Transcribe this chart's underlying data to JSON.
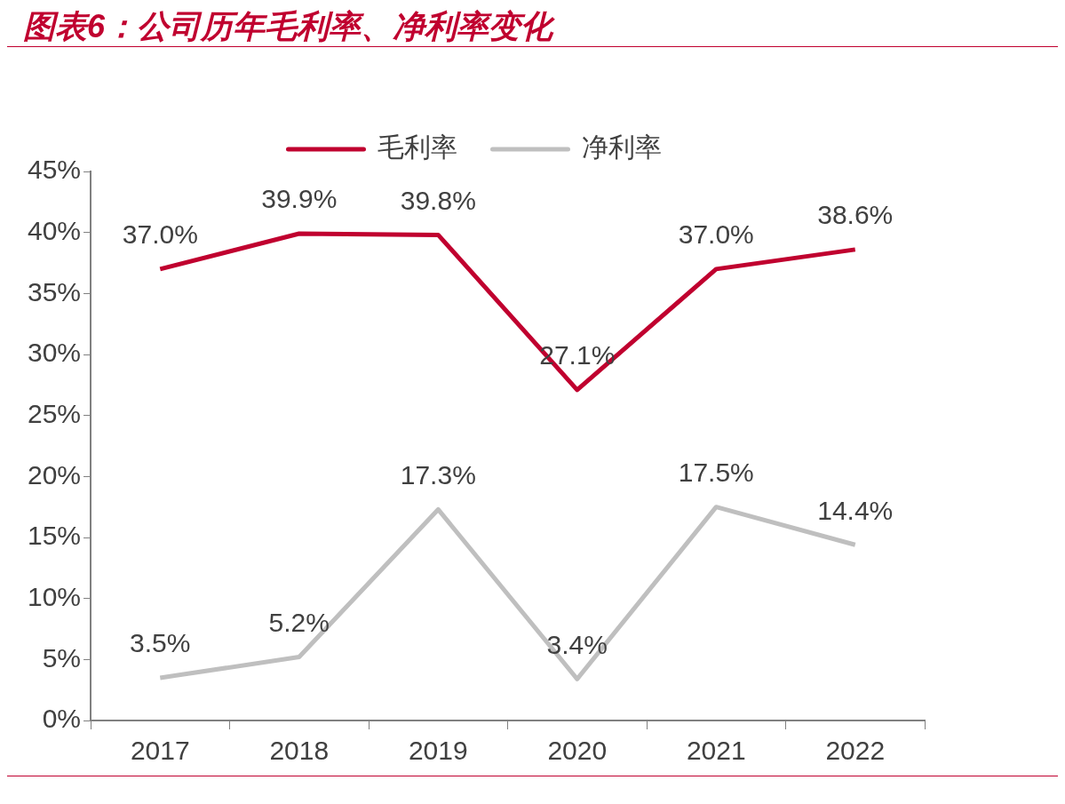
{
  "chart_data": {
    "type": "line",
    "title": "图表6：公司历年毛利率、净利率变化",
    "categories": [
      "2017",
      "2018",
      "2019",
      "2020",
      "2021",
      "2022"
    ],
    "series": [
      {
        "name": "毛利率",
        "color": "#c0002f",
        "values": [
          37.0,
          39.9,
          39.8,
          27.1,
          37.0,
          38.6
        ],
        "value_labels": [
          "37.0%",
          "39.9%",
          "39.8%",
          "27.1%",
          "37.0%",
          "38.6%"
        ]
      },
      {
        "name": "净利率",
        "color": "#bfbfbf",
        "values": [
          3.5,
          5.2,
          17.3,
          3.4,
          17.5,
          14.4
        ],
        "value_labels": [
          "3.5%",
          "5.2%",
          "17.3%",
          "3.4%",
          "17.5%",
          "14.4%"
        ]
      }
    ],
    "ylim": [
      0,
      45
    ],
    "yticks": [
      {
        "value": 0,
        "label": "0%"
      },
      {
        "value": 5,
        "label": "5%"
      },
      {
        "value": 10,
        "label": "10%"
      },
      {
        "value": 15,
        "label": "15%"
      },
      {
        "value": 20,
        "label": "20%"
      },
      {
        "value": 25,
        "label": "25%"
      },
      {
        "value": 30,
        "label": "30%"
      },
      {
        "value": 35,
        "label": "35%"
      },
      {
        "value": 40,
        "label": "40%"
      },
      {
        "value": 45,
        "label": "45%"
      }
    ],
    "grid": false,
    "legend": "top",
    "marker": "none",
    "line_style": "solid"
  }
}
